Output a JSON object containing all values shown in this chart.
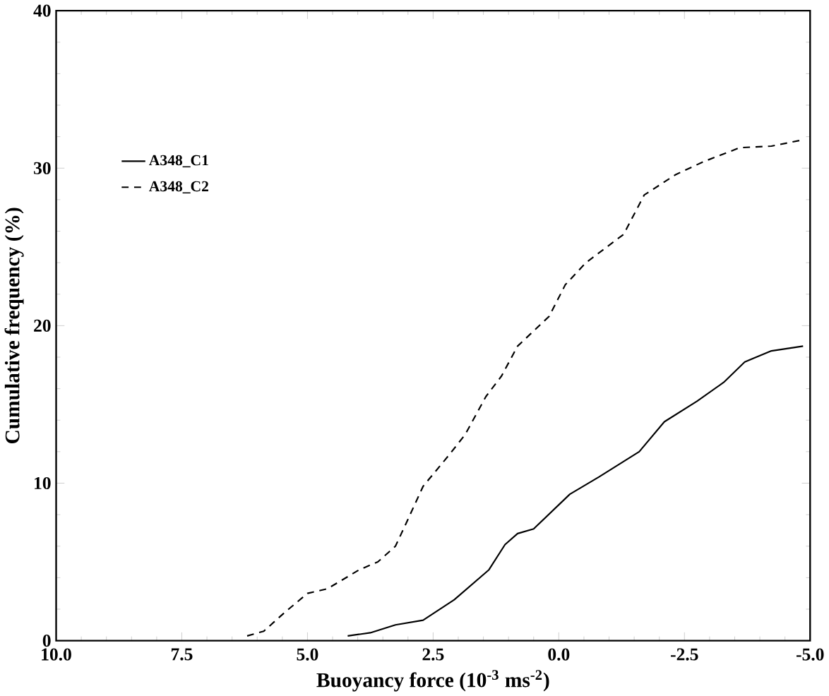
{
  "chart_data": {
    "type": "line",
    "xlabel": "Buoyancy force (10$^{-3}$ ms$^{-2}$)",
    "ylabel": "Cumulative frequency (%)",
    "xlim": [
      10,
      -5
    ],
    "ylim": [
      0,
      40
    ],
    "xticks": [
      {
        "value": 10,
        "label": "10.0"
      },
      {
        "value": 7.5,
        "label": "7.5"
      },
      {
        "value": 5,
        "label": "5.0"
      },
      {
        "value": 2.5,
        "label": "2.5"
      },
      {
        "value": 0,
        "label": "0.0"
      },
      {
        "value": -2.5,
        "label": "-2.5"
      },
      {
        "value": -5,
        "label": "-5.0"
      }
    ],
    "yticks": [
      0,
      10,
      20,
      30,
      40
    ],
    "grid": false,
    "legend": "top left",
    "marker": "none",
    "series": [
      {
        "name": "A348_C1",
        "color": "#000000",
        "line_style": "solid",
        "x": [
          4.2,
          3.75,
          3.25,
          2.7,
          2.08,
          1.39,
          1.07,
          0.82,
          0.5,
          -0.22,
          -0.8,
          -1.6,
          -2.1,
          -2.75,
          -3.28,
          -3.7,
          -4.23,
          -4.86
        ],
        "values": [
          0.3,
          0.5,
          1.0,
          1.3,
          2.6,
          4.5,
          6.1,
          6.8,
          7.1,
          9.3,
          10.4,
          12.0,
          13.9,
          15.2,
          16.4,
          17.7,
          18.4,
          18.7
        ]
      },
      {
        "name": "A348_C2",
        "color": "#000000",
        "line_style": "dashed",
        "x": [
          6.2,
          5.87,
          5.45,
          5.0,
          4.6,
          3.97,
          3.6,
          3.25,
          3.03,
          2.7,
          2.18,
          1.86,
          1.45,
          1.14,
          0.82,
          0.19,
          -0.13,
          -0.54,
          -1.29,
          -1.7,
          -2.33,
          -2.87,
          -3.6,
          -4.23,
          -4.86
        ],
        "values": [
          0.3,
          0.6,
          1.8,
          3.0,
          3.3,
          4.5,
          5.0,
          6.0,
          7.5,
          9.8,
          11.8,
          13.1,
          15.5,
          16.8,
          18.7,
          20.6,
          22.6,
          24.0,
          25.8,
          28.3,
          29.6,
          30.4,
          31.3,
          31.4,
          31.8
        ]
      }
    ]
  }
}
